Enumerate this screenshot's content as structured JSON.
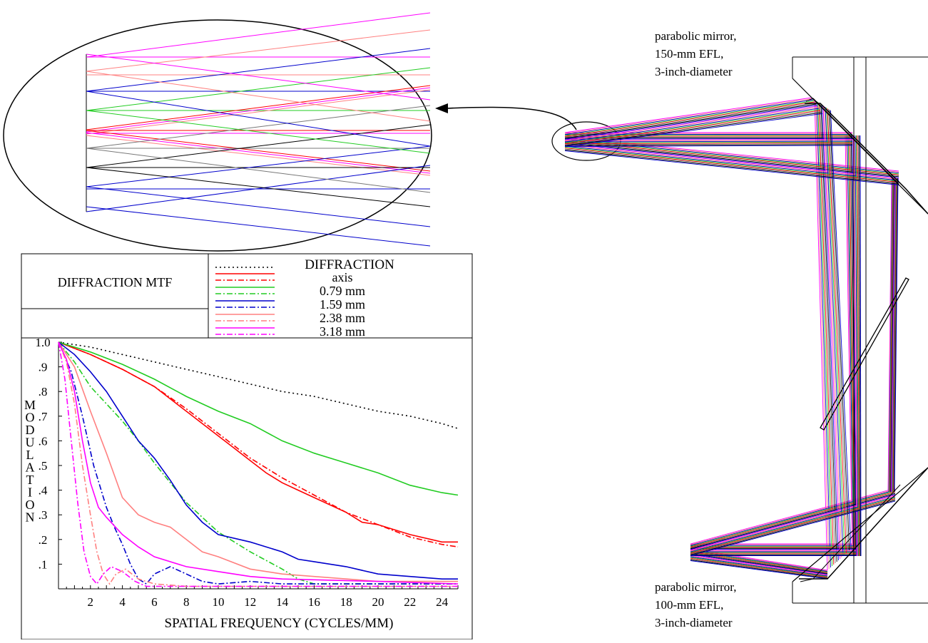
{
  "labels": {
    "top_mirror": [
      "parabolic mirror,",
      "150-mm EFL,",
      "3-inch-diameter"
    ],
    "bottom_mirror": [
      "parabolic mirror,",
      "100-mm EFL,",
      "3-inch-diameter"
    ]
  },
  "mtf_panel": {
    "title": "DIFFRACTION MTF",
    "legend_heading": "DIFFRACTION",
    "legend_entries": [
      "axis",
      "0.79 mm",
      "1.59 mm",
      "2.38 mm",
      "3.18 mm"
    ]
  },
  "colors": {
    "red": "#ff0000",
    "green": "#22cc22",
    "blue": "#0000cc",
    "salmon": "#ff8080",
    "magenta": "#ff00ff",
    "gray": "#777777",
    "black": "#000000"
  },
  "chart_data": {
    "type": "line",
    "title": "",
    "xlabel": "SPATIAL FREQUENCY (CYCLES/MM)",
    "ylabel": "MODULATION",
    "xlim": [
      0,
      25
    ],
    "ylim": [
      0,
      1.0
    ],
    "x_ticks": [
      "2",
      "4",
      "6",
      "8",
      "10",
      "12",
      "14",
      "16",
      "18",
      "20",
      "22",
      "24"
    ],
    "y_ticks": [
      ".1",
      ".2",
      ".3",
      ".4",
      ".5",
      ".6",
      ".7",
      ".8",
      ".9",
      "1.0"
    ],
    "series": [
      {
        "name": "DIFFRACTION",
        "color": "#000000",
        "dash": "dot",
        "points": [
          [
            0,
            1.0
          ],
          [
            2,
            0.98
          ],
          [
            4,
            0.95
          ],
          [
            6,
            0.92
          ],
          [
            8,
            0.89
          ],
          [
            10,
            0.86
          ],
          [
            12,
            0.83
          ],
          [
            14,
            0.8
          ],
          [
            16,
            0.78
          ],
          [
            18,
            0.75
          ],
          [
            20,
            0.72
          ],
          [
            22,
            0.7
          ],
          [
            24,
            0.67
          ],
          [
            25,
            0.65
          ]
        ]
      },
      {
        "name": "axis",
        "color": "#ff0000",
        "dash": "solid",
        "points": [
          [
            0,
            1.0
          ],
          [
            2,
            0.95
          ],
          [
            4,
            0.89
          ],
          [
            6,
            0.82
          ],
          [
            8,
            0.72
          ],
          [
            10,
            0.62
          ],
          [
            11,
            0.57
          ],
          [
            12,
            0.52
          ],
          [
            13,
            0.47
          ],
          [
            14,
            0.43
          ],
          [
            15,
            0.4
          ],
          [
            16,
            0.37
          ],
          [
            18,
            0.31
          ],
          [
            19,
            0.27
          ],
          [
            20,
            0.26
          ],
          [
            22,
            0.22
          ],
          [
            24,
            0.19
          ],
          [
            25,
            0.19
          ]
        ]
      },
      {
        "name": "axis",
        "color": "#ff0000",
        "dash": "dashdot",
        "points": [
          [
            0,
            1.0
          ],
          [
            2,
            0.95
          ],
          [
            4,
            0.89
          ],
          [
            6,
            0.82
          ],
          [
            8,
            0.73
          ],
          [
            10,
            0.63
          ],
          [
            12,
            0.53
          ],
          [
            14,
            0.45
          ],
          [
            16,
            0.38
          ],
          [
            18,
            0.31
          ],
          [
            20,
            0.26
          ],
          [
            22,
            0.21
          ],
          [
            24,
            0.18
          ],
          [
            25,
            0.17
          ]
        ]
      },
      {
        "name": "0.79 mm",
        "color": "#22cc22",
        "dash": "solid",
        "points": [
          [
            0,
            1.0
          ],
          [
            2,
            0.96
          ],
          [
            4,
            0.91
          ],
          [
            6,
            0.85
          ],
          [
            8,
            0.78
          ],
          [
            10,
            0.72
          ],
          [
            12,
            0.67
          ],
          [
            14,
            0.6
          ],
          [
            16,
            0.55
          ],
          [
            18,
            0.51
          ],
          [
            20,
            0.47
          ],
          [
            22,
            0.42
          ],
          [
            24,
            0.39
          ],
          [
            25,
            0.38
          ]
        ]
      },
      {
        "name": "0.79 mm",
        "color": "#22cc22",
        "dash": "dashdot",
        "points": [
          [
            0,
            1.0
          ],
          [
            1,
            0.92
          ],
          [
            2,
            0.82
          ],
          [
            3,
            0.75
          ],
          [
            4,
            0.68
          ],
          [
            5,
            0.6
          ],
          [
            6,
            0.51
          ],
          [
            7,
            0.43
          ],
          [
            8,
            0.35
          ],
          [
            10,
            0.23
          ],
          [
            12,
            0.15
          ],
          [
            14,
            0.08
          ],
          [
            15,
            0.04
          ],
          [
            16,
            0.02
          ],
          [
            18,
            0.02
          ],
          [
            20,
            0.02
          ],
          [
            25,
            0.02
          ]
        ]
      },
      {
        "name": "1.59 mm",
        "color": "#0000cc",
        "dash": "solid",
        "points": [
          [
            0,
            1.0
          ],
          [
            1,
            0.95
          ],
          [
            2,
            0.88
          ],
          [
            3,
            0.8
          ],
          [
            4,
            0.7
          ],
          [
            5,
            0.6
          ],
          [
            6,
            0.53
          ],
          [
            7,
            0.44
          ],
          [
            8,
            0.34
          ],
          [
            9,
            0.27
          ],
          [
            10,
            0.22
          ],
          [
            12,
            0.19
          ],
          [
            14,
            0.15
          ],
          [
            15,
            0.12
          ],
          [
            16,
            0.11
          ],
          [
            18,
            0.09
          ],
          [
            20,
            0.06
          ],
          [
            22,
            0.05
          ],
          [
            24,
            0.04
          ],
          [
            25,
            0.04
          ]
        ]
      },
      {
        "name": "1.59 mm",
        "color": "#0000cc",
        "dash": "dashdot",
        "points": [
          [
            0,
            1.0
          ],
          [
            0.8,
            0.88
          ],
          [
            1.5,
            0.7
          ],
          [
            2.2,
            0.5
          ],
          [
            3,
            0.33
          ],
          [
            3.5,
            0.25
          ],
          [
            4,
            0.18
          ],
          [
            4.5,
            0.1
          ],
          [
            5,
            0.04
          ],
          [
            5.5,
            0.02
          ],
          [
            6,
            0.06
          ],
          [
            7,
            0.09
          ],
          [
            8,
            0.06
          ],
          [
            9,
            0.03
          ],
          [
            10,
            0.02
          ],
          [
            12,
            0.03
          ],
          [
            14,
            0.02
          ],
          [
            25,
            0.02
          ]
        ]
      },
      {
        "name": "2.38 mm",
        "color": "#ff8080",
        "dash": "solid",
        "points": [
          [
            0,
            1.0
          ],
          [
            1,
            0.9
          ],
          [
            2,
            0.72
          ],
          [
            3,
            0.55
          ],
          [
            4,
            0.37
          ],
          [
            5,
            0.3
          ],
          [
            6,
            0.27
          ],
          [
            7,
            0.25
          ],
          [
            8,
            0.2
          ],
          [
            9,
            0.15
          ],
          [
            10,
            0.13
          ],
          [
            12,
            0.08
          ],
          [
            14,
            0.06
          ],
          [
            16,
            0.05
          ],
          [
            20,
            0.03
          ],
          [
            25,
            0.03
          ]
        ]
      },
      {
        "name": "2.38 mm",
        "color": "#ff8080",
        "dash": "dashdot",
        "points": [
          [
            0,
            1.0
          ],
          [
            0.5,
            0.92
          ],
          [
            1,
            0.75
          ],
          [
            1.5,
            0.5
          ],
          [
            2,
            0.3
          ],
          [
            2.4,
            0.15
          ],
          [
            2.8,
            0.06
          ],
          [
            3.2,
            0.02
          ],
          [
            3.6,
            0.06
          ],
          [
            4.2,
            0.08
          ],
          [
            5,
            0.04
          ],
          [
            6,
            0.02
          ],
          [
            8,
            0.01
          ],
          [
            25,
            0.01
          ]
        ]
      },
      {
        "name": "3.18 mm",
        "color": "#ff00ff",
        "dash": "solid",
        "points": [
          [
            0,
            1.0
          ],
          [
            0.5,
            0.93
          ],
          [
            1,
            0.8
          ],
          [
            1.5,
            0.6
          ],
          [
            2,
            0.43
          ],
          [
            2.5,
            0.33
          ],
          [
            3,
            0.29
          ],
          [
            4,
            0.22
          ],
          [
            5,
            0.17
          ],
          [
            6,
            0.13
          ],
          [
            8,
            0.09
          ],
          [
            10,
            0.07
          ],
          [
            12,
            0.05
          ],
          [
            14,
            0.04
          ],
          [
            20,
            0.03
          ],
          [
            25,
            0.02
          ]
        ]
      },
      {
        "name": "3.18 mm",
        "color": "#ff00ff",
        "dash": "dashdot",
        "points": [
          [
            0,
            1.0
          ],
          [
            0.4,
            0.85
          ],
          [
            0.8,
            0.6
          ],
          [
            1.2,
            0.35
          ],
          [
            1.6,
            0.15
          ],
          [
            2,
            0.05
          ],
          [
            2.4,
            0.02
          ],
          [
            2.8,
            0.06
          ],
          [
            3.3,
            0.09
          ],
          [
            4,
            0.07
          ],
          [
            4.8,
            0.03
          ],
          [
            5.5,
            0.01
          ],
          [
            25,
            0.01
          ]
        ]
      }
    ]
  }
}
